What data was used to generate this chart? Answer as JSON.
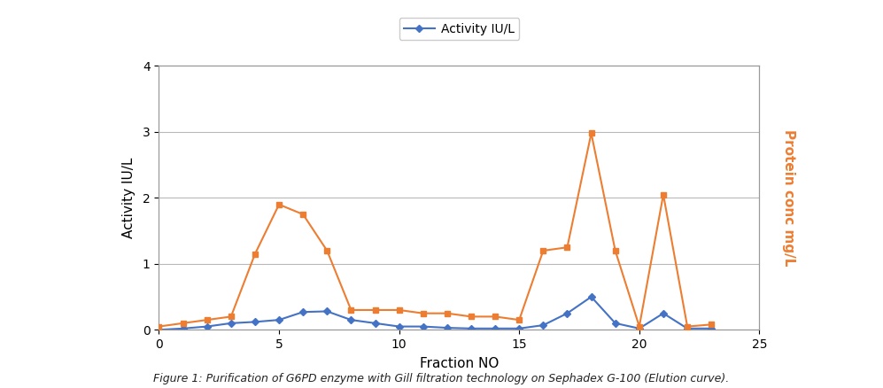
{
  "activity_x": [
    0,
    1,
    2,
    3,
    4,
    5,
    6,
    7,
    8,
    9,
    10,
    11,
    12,
    13,
    14,
    15,
    16,
    17,
    18,
    19,
    20,
    21,
    22,
    23
  ],
  "activity_y": [
    0.0,
    0.02,
    0.05,
    0.1,
    0.12,
    0.15,
    0.27,
    0.28,
    0.15,
    0.1,
    0.05,
    0.05,
    0.03,
    0.02,
    0.02,
    0.02,
    0.07,
    0.25,
    0.5,
    0.1,
    0.02,
    0.25,
    0.02,
    0.02
  ],
  "protein_x": [
    0,
    1,
    2,
    3,
    4,
    5,
    6,
    7,
    8,
    9,
    10,
    11,
    12,
    13,
    14,
    15,
    16,
    17,
    18,
    19,
    20,
    21,
    22,
    23
  ],
  "protein_y": [
    0.05,
    0.1,
    0.15,
    0.2,
    1.15,
    1.9,
    1.75,
    1.2,
    0.3,
    0.3,
    0.3,
    0.25,
    0.25,
    0.2,
    0.2,
    0.15,
    1.2,
    1.25,
    2.98,
    1.2,
    0.05,
    2.05,
    0.05,
    0.08
  ],
  "activity_color": "#4472C4",
  "protein_color": "#ED7D31",
  "activity_label": "Activity IU/L",
  "protein_label": "Protein conc mg/L",
  "xlabel": "Fraction NO",
  "ylabel_left": "Activity IU/L",
  "ylabel_right": "Protein conc mg/L",
  "xlim": [
    0,
    25
  ],
  "ylim": [
    0,
    4
  ],
  "yticks": [
    0,
    1,
    2,
    3,
    4
  ],
  "xticks": [
    0,
    5,
    10,
    15,
    20,
    25
  ],
  "legend_label": "Activity IU/L",
  "caption": "Figure 1: Purification of G6PD enzyme with Gill filtration technology on Sephadex G-100 (Elution curve).",
  "background_color": "#ffffff",
  "grid_color": "#b8b8b8",
  "border_color": "#999999"
}
